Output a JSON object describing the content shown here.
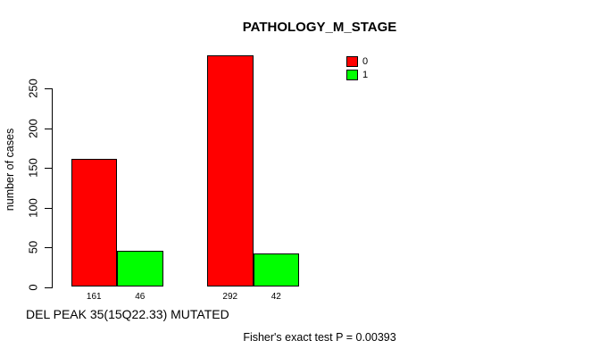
{
  "chart_data": {
    "type": "bar",
    "title": "PATHOLOGY_M_STAGE",
    "xlabel": "DEL PEAK 35(15Q22.33) MUTATED",
    "ylabel": "number of cases",
    "categories": [
      "",
      ""
    ],
    "series": [
      {
        "name": "0",
        "color": "#FF0000",
        "values": [
          161,
          292
        ]
      },
      {
        "name": "1",
        "color": "#00FF00",
        "values": [
          46,
          42
        ]
      }
    ],
    "bar_value_labels": [
      [
        161,
        46
      ],
      [
        292,
        42
      ]
    ],
    "yticks": [
      0,
      50,
      100,
      150,
      200,
      250
    ],
    "ylim": [
      0,
      250
    ],
    "grid": false,
    "legend_position": "top-right",
    "annotation": "Fisher's exact test P = 0.00393"
  }
}
